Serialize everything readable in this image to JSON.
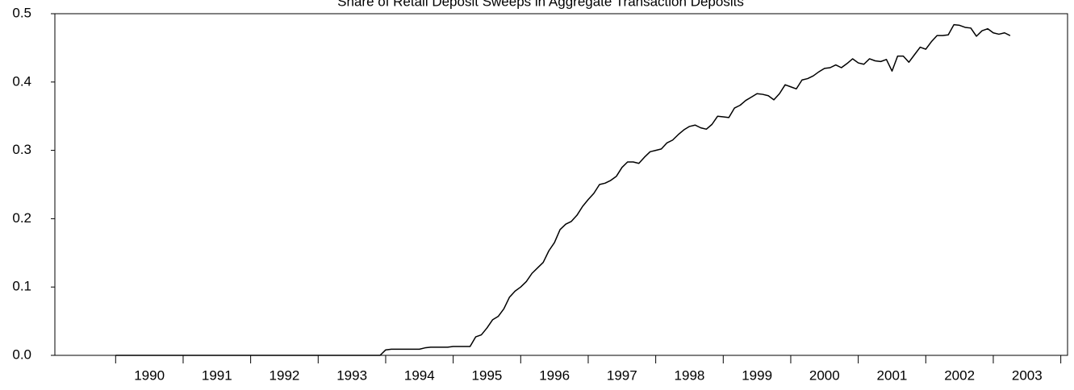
{
  "chart_data": {
    "type": "line",
    "title": "Share of Retail Deposit Sweeps in Aggregate Transaction Deposits",
    "xlim": [
      1989.1,
      2004.1
    ],
    "xticks": [
      {
        "value": 1990.5,
        "label": "1990"
      },
      {
        "value": 1991.5,
        "label": "1991"
      },
      {
        "value": 1992.5,
        "label": "1992"
      },
      {
        "value": 1993.5,
        "label": "1993"
      },
      {
        "value": 1994.5,
        "label": "1994"
      },
      {
        "value": 1995.5,
        "label": "1995"
      },
      {
        "value": 1996.5,
        "label": "1996"
      },
      {
        "value": 1997.5,
        "label": "1997"
      },
      {
        "value": 1998.5,
        "label": "1998"
      },
      {
        "value": 1999.5,
        "label": "1999"
      },
      {
        "value": 2000.5,
        "label": "2000"
      },
      {
        "value": 2001.5,
        "label": "2001"
      },
      {
        "value": 2002.5,
        "label": "2002"
      },
      {
        "value": 2003.5,
        "label": "2003"
      }
    ],
    "ylim": [
      0,
      0.5
    ],
    "yticks": [
      {
        "value": 0,
        "label": "0.0"
      },
      0.1,
      0.2,
      0.3,
      0.4,
      0.5
    ],
    "grid": false,
    "series": [
      {
        "color": "#000000",
        "x": [
          1990.0,
          1993.917,
          1994.0,
          1994.083,
          1994.167,
          1994.25,
          1994.333,
          1994.417,
          1994.5,
          1994.583,
          1994.667,
          1994.75,
          1994.833,
          1994.917,
          1995.0,
          1995.083,
          1995.167,
          1995.25,
          1995.333,
          1995.417,
          1995.5,
          1995.583,
          1995.667,
          1995.75,
          1995.833,
          1995.917,
          1996.0,
          1996.083,
          1996.167,
          1996.25,
          1996.333,
          1996.417,
          1996.5,
          1996.583,
          1996.667,
          1996.75,
          1996.833,
          1996.917,
          1997.0,
          1997.083,
          1997.167,
          1997.25,
          1997.333,
          1997.417,
          1997.5,
          1997.583,
          1997.667,
          1997.75,
          1997.833,
          1997.917,
          1998.0,
          1998.083,
          1998.167,
          1998.25,
          1998.333,
          1998.417,
          1998.5,
          1998.583,
          1998.667,
          1998.75,
          1998.833,
          1998.917,
          1999.0,
          1999.083,
          1999.167,
          1999.25,
          1999.333,
          1999.417,
          1999.5,
          1999.583,
          1999.667,
          1999.75,
          1999.833,
          1999.917,
          2000.0,
          2000.083,
          2000.167,
          2000.25,
          2000.333,
          2000.417,
          2000.5,
          2000.583,
          2000.667,
          2000.75,
          2000.833,
          2000.917,
          2001.0,
          2001.083,
          2001.167,
          2001.25,
          2001.333,
          2001.417,
          2001.5,
          2001.583,
          2001.667,
          2001.75,
          2001.833,
          2001.917,
          2002.0,
          2002.083,
          2002.167,
          2002.25,
          2002.333,
          2002.417,
          2002.5,
          2002.583,
          2002.667,
          2002.75,
          2002.833,
          2002.917,
          2003.0,
          2003.083,
          2003.167,
          2003.25
        ],
        "values": [
          0,
          0,
          0.008,
          0.009,
          0.009,
          0.009,
          0.009,
          0.009,
          0.009,
          0.011,
          0.012,
          0.012,
          0.012,
          0.012,
          0.013,
          0.013,
          0.013,
          0.013,
          0.027,
          0.03,
          0.04,
          0.052,
          0.057,
          0.068,
          0.085,
          0.094,
          0.1,
          0.108,
          0.12,
          0.128,
          0.136,
          0.153,
          0.165,
          0.184,
          0.192,
          0.196,
          0.205,
          0.218,
          0.228,
          0.237,
          0.25,
          0.252,
          0.256,
          0.262,
          0.275,
          0.283,
          0.283,
          0.281,
          0.29,
          0.298,
          0.3,
          0.302,
          0.311,
          0.315,
          0.323,
          0.33,
          0.335,
          0.337,
          0.333,
          0.331,
          0.338,
          0.35,
          0.349,
          0.348,
          0.362,
          0.366,
          0.373,
          0.378,
          0.383,
          0.382,
          0.38,
          0.374,
          0.383,
          0.396,
          0.393,
          0.39,
          0.403,
          0.405,
          0.409,
          0.415,
          0.42,
          0.421,
          0.425,
          0.421,
          0.427,
          0.434,
          0.428,
          0.426,
          0.434,
          0.431,
          0.43,
          0.433,
          0.416,
          0.438,
          0.438,
          0.429,
          0.44,
          0.451,
          0.448,
          0.459,
          0.468,
          0.468,
          0.469,
          0.484,
          0.483,
          0.48,
          0.479,
          0.467,
          0.475,
          0.478,
          0.472,
          0.47,
          0.472,
          0.468
        ]
      }
    ]
  }
}
